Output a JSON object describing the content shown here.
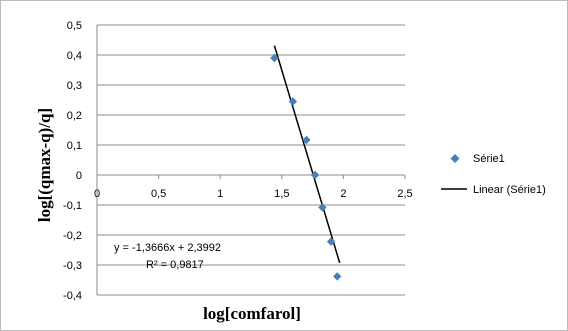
{
  "chart_data": {
    "type": "scatter",
    "xlabel": "log[comfarol]",
    "ylabel": "log[(qmax-q)/q]",
    "xlim": [
      0,
      2.5
    ],
    "ylim": [
      -0.4,
      0.5
    ],
    "x_ticks": [
      "0",
      "0,5",
      "1",
      "1,5",
      "2",
      "2,5"
    ],
    "y_ticks": [
      "0,5",
      "0,4",
      "0,3",
      "0,2",
      "0,1",
      "0",
      "-0,1",
      "-0,2",
      "-0,3",
      "-0,4"
    ],
    "grid": "horizontal",
    "legend_position": "right",
    "series": [
      {
        "name": "Série1",
        "marker": "diamond",
        "color": "#4a7ebb",
        "x": [
          1.44,
          1.59,
          1.7,
          1.77,
          1.83,
          1.9,
          1.95
        ],
        "y": [
          0.39,
          0.245,
          0.117,
          0.0,
          -0.108,
          -0.222,
          -0.338
        ]
      }
    ],
    "trendline": {
      "name": "Linear (Série1)",
      "type": "linear",
      "color": "#000000",
      "slope": -1.3666,
      "intercept": 2.3992,
      "x_range": [
        1.44,
        1.97
      ],
      "equation": "y = -1,3666x + 2,3992",
      "r_squared": "R² = 0,9817"
    }
  }
}
